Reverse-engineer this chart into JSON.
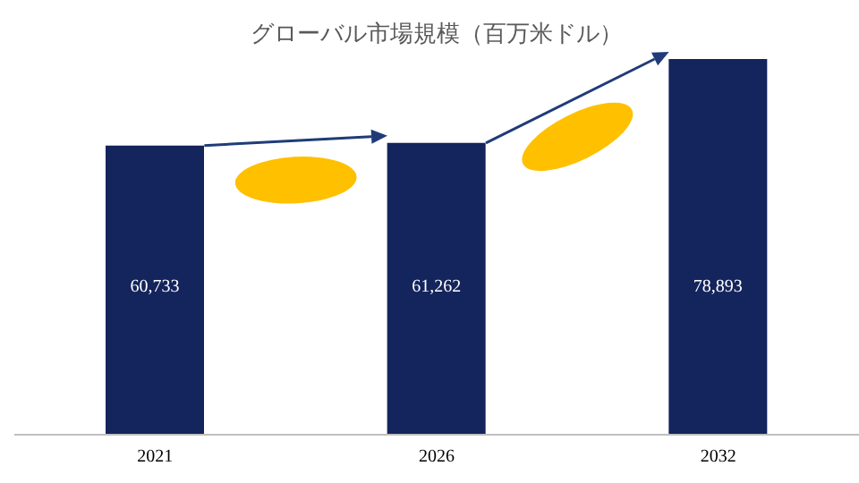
{
  "chart_data": {
    "type": "bar",
    "title": "グローバル市場規模（百万米ドル）",
    "categories": [
      "2021",
      "2026",
      "2032"
    ],
    "values": [
      60733,
      61262,
      78893
    ],
    "color": "#14245c",
    "value_labels": [
      "60,733",
      "61,262",
      "78,893"
    ]
  }
}
